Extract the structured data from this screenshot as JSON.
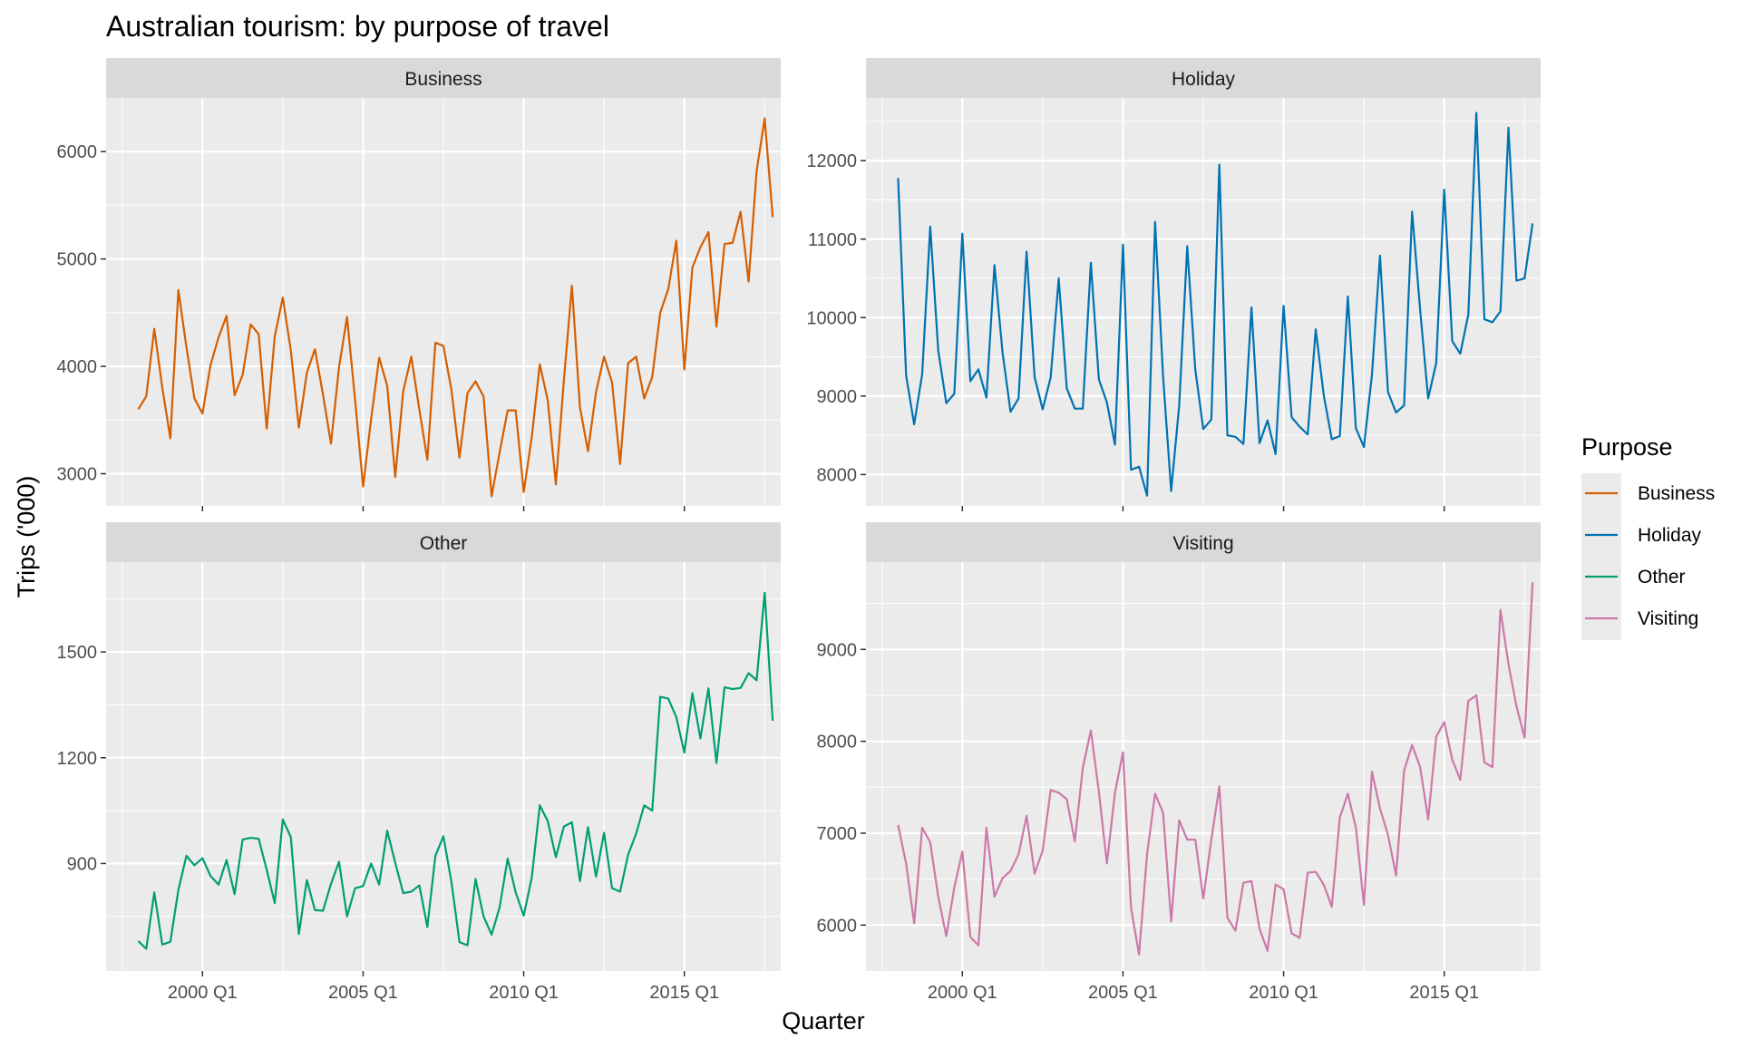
{
  "chart_data": {
    "type": "line",
    "title": "Australian tourism: by purpose of travel",
    "xlabel": "Quarter",
    "ylabel": "Trips ('000)",
    "x_start": "1998 Q1",
    "x_end": "2017 Q4",
    "x_ticks": [
      "2000 Q1",
      "2005 Q1",
      "2010 Q1",
      "2015 Q1"
    ],
    "grid": true,
    "legend": {
      "title": "Purpose",
      "position": "right",
      "entries": [
        "Business",
        "Holiday",
        "Other",
        "Visiting"
      ]
    },
    "panels": [
      {
        "name": "Business",
        "color": "#D55E00",
        "ylim": [
          2700,
          6500
        ],
        "y_ticks": [
          3000,
          4000,
          5000,
          6000
        ],
        "values": [
          3600,
          3720,
          4350,
          3800,
          3330,
          4710,
          4180,
          3700,
          3560,
          4010,
          4270,
          4470,
          3730,
          3920,
          4390,
          4300,
          3420,
          4280,
          4640,
          4150,
          3430,
          3940,
          4160,
          3740,
          3280,
          3990,
          4460,
          3690,
          2880,
          3510,
          4080,
          3820,
          2970,
          3770,
          4090,
          3600,
          3130,
          4220,
          4190,
          3780,
          3150,
          3750,
          3860,
          3720,
          2790,
          3200,
          3590,
          3590,
          2830,
          3340,
          4020,
          3680,
          2900,
          3870,
          4750,
          3620,
          3210,
          3760,
          4090,
          3850,
          3090,
          4030,
          4090,
          3700,
          3900,
          4500,
          4720,
          5170,
          3970,
          4920,
          5110,
          5250,
          4370,
          5140,
          5150,
          5440,
          4790,
          5820,
          6310,
          5390
        ]
      },
      {
        "name": "Holiday",
        "color": "#0072B2",
        "ylim": [
          7600,
          12800
        ],
        "y_ticks": [
          8000,
          9000,
          10000,
          11000,
          12000
        ],
        "values": [
          11780,
          9260,
          8640,
          9280,
          11160,
          9580,
          8910,
          9030,
          11070,
          9190,
          9340,
          8980,
          10670,
          9560,
          8800,
          8970,
          10840,
          9240,
          8830,
          9240,
          10500,
          9100,
          8840,
          8840,
          10700,
          9210,
          8920,
          8380,
          10930,
          8060,
          8100,
          7730,
          11220,
          9240,
          7790,
          8880,
          10910,
          9340,
          8580,
          8700,
          11950,
          8500,
          8480,
          8390,
          10130,
          8400,
          8690,
          8260,
          10150,
          8730,
          8610,
          8510,
          9850,
          9010,
          8450,
          8490,
          10270,
          8590,
          8350,
          9270,
          10790,
          9050,
          8790,
          8880,
          11350,
          10100,
          8970,
          9420,
          11630,
          9700,
          9540,
          10040,
          12610,
          9980,
          9940,
          10080,
          12420,
          10470,
          10500,
          11200
        ]
      },
      {
        "name": "Other",
        "color": "#009E73",
        "ylim": [
          595,
          1755
        ],
        "y_ticks": [
          900,
          1200,
          1500
        ],
        "values": [
          680,
          658,
          818,
          670,
          678,
          825,
          922,
          895,
          915,
          865,
          840,
          910,
          813,
          968,
          973,
          970,
          882,
          788,
          1025,
          975,
          700,
          853,
          768,
          766,
          842,
          905,
          750,
          830,
          836,
          900,
          840,
          993,
          902,
          816,
          820,
          838,
          720,
          922,
          977,
          848,
          677,
          668,
          856,
          750,
          698,
          776,
          914,
          818,
          752,
          860,
          1065,
          1020,
          918,
          1005,
          1017,
          850,
          1003,
          863,
          987,
          830,
          820,
          925,
          985,
          1065,
          1050,
          1373,
          1368,
          1315,
          1215,
          1383,
          1255,
          1397,
          1185,
          1400,
          1395,
          1398,
          1440,
          1420,
          1668,
          1305
        ]
      },
      {
        "name": "Visiting",
        "color": "#CC79A7",
        "ylim": [
          5500,
          9950
        ],
        "y_ticks": [
          6000,
          7000,
          8000,
          9000
        ],
        "values": [
          7090,
          6670,
          6020,
          7060,
          6900,
          6310,
          5880,
          6410,
          6800,
          5870,
          5780,
          7060,
          6310,
          6510,
          6590,
          6770,
          7190,
          6560,
          6810,
          7470,
          7440,
          7370,
          6910,
          7710,
          8120,
          7450,
          6670,
          7440,
          7880,
          6190,
          5680,
          6770,
          7430,
          7220,
          6040,
          7140,
          6930,
          6930,
          6290,
          6930,
          7510,
          6080,
          5940,
          6460,
          6480,
          5960,
          5720,
          6440,
          6390,
          5910,
          5860,
          6570,
          6580,
          6440,
          6200,
          7170,
          7430,
          7060,
          6220,
          7670,
          7270,
          6980,
          6540,
          7680,
          7960,
          7720,
          7150,
          8050,
          8210,
          7800,
          7580,
          8440,
          8500,
          7770,
          7720,
          9430,
          8840,
          8380,
          8040,
          9730
        ]
      }
    ]
  }
}
